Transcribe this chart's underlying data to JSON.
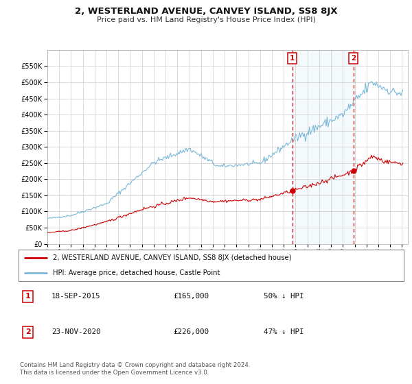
{
  "title": "2, WESTERLAND AVENUE, CANVEY ISLAND, SS8 8JX",
  "subtitle": "Price paid vs. HM Land Registry's House Price Index (HPI)",
  "legend_line1": "2, WESTERLAND AVENUE, CANVEY ISLAND, SS8 8JX (detached house)",
  "legend_line2": "HPI: Average price, detached house, Castle Point",
  "annotation1_label": "1",
  "annotation1_date": "18-SEP-2015",
  "annotation1_price": "£165,000",
  "annotation1_hpi": "50% ↓ HPI",
  "annotation2_label": "2",
  "annotation2_date": "23-NOV-2020",
  "annotation2_price": "£226,000",
  "annotation2_hpi": "47% ↓ HPI",
  "footnote1": "Contains HM Land Registry data © Crown copyright and database right 2024.",
  "footnote2": "This data is licensed under the Open Government Licence v3.0.",
  "hpi_color": "#7ab8d9",
  "hpi_fill_color": "#d6eaf5",
  "price_color": "#cc0000",
  "dot_color": "#cc0000",
  "vline_color": "#cc0000",
  "background_color": "#ffffff",
  "grid_color": "#cccccc",
  "ylim": [
    0,
    600000
  ],
  "yticks": [
    0,
    50000,
    100000,
    150000,
    200000,
    250000,
    300000,
    350000,
    400000,
    450000,
    500000,
    550000
  ],
  "year_start": 1995,
  "year_end": 2025,
  "sale1_year": 2015.72,
  "sale1_price": 165000,
  "sale2_year": 2020.9,
  "sale2_price": 226000
}
